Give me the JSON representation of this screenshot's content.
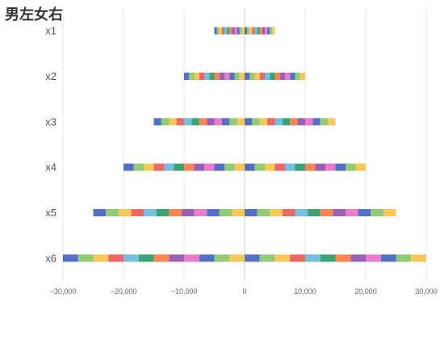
{
  "chart_data": {
    "type": "bar",
    "orientation": "horizontal",
    "title": "男左女右",
    "xlim": [
      -30000,
      30000
    ],
    "x_ticks": [
      "−30,000",
      "−20,000",
      "−10,000",
      "0",
      "10,000",
      "20,000",
      "30,000"
    ],
    "x_tick_values": [
      -30000,
      -20000,
      -10000,
      0,
      10000,
      20000,
      30000
    ],
    "categories": [
      "x1",
      "x2",
      "x3",
      "x4",
      "x5",
      "x6"
    ],
    "left_series_side": "男 (negative)",
    "right_series_side": "女 (positive)",
    "segment_count": [
      12,
      12,
      12,
      12,
      12,
      12
    ],
    "extent": [
      5000,
      10000,
      15000,
      20000,
      25000,
      30000
    ],
    "grid": "vertical",
    "legend": "none",
    "palette": [
      "#5470c6",
      "#91cc75",
      "#fac858",
      "#ee6666",
      "#73c0de",
      "#3ba272",
      "#fc8452",
      "#9a60b4",
      "#ea7ccc"
    ]
  }
}
